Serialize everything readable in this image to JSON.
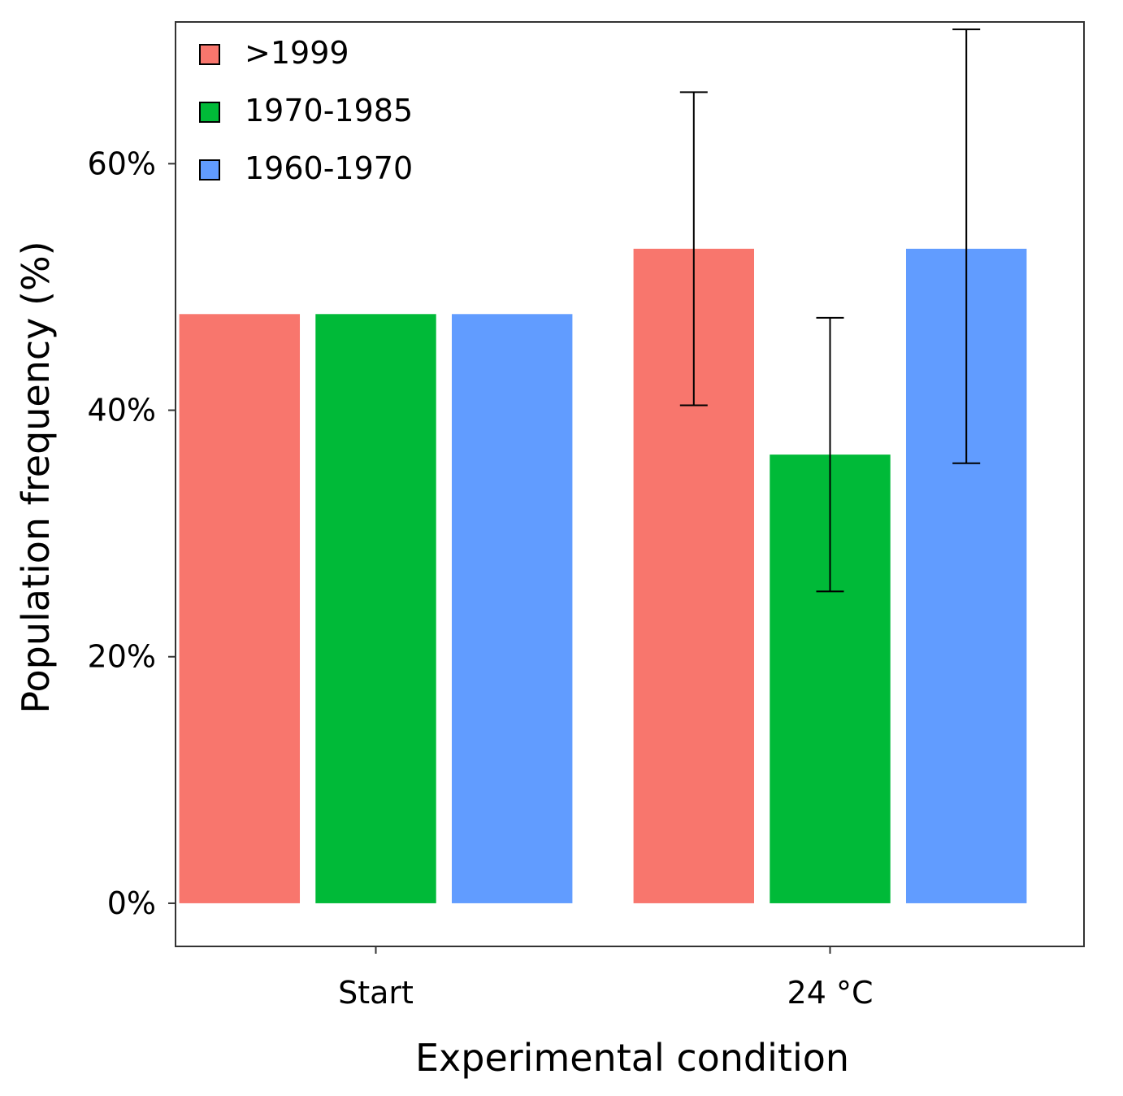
{
  "chart_data": {
    "type": "bar",
    "title": "",
    "xlabel": "Experimental condition",
    "ylabel": "Population frequency (%)",
    "categories": [
      "Start",
      "24 °C"
    ],
    "ylim": [
      -3.5,
      71.5
    ],
    "yticks": [
      0,
      20,
      40,
      60
    ],
    "ytick_labels": [
      "0%",
      "20%",
      "40%",
      "60%"
    ],
    "grid": false,
    "legend_position": "top-left",
    "series": [
      {
        "name": ">1999",
        "color": "#F8766D",
        "values": [
          47.8,
          53.1
        ],
        "error_low": [
          null,
          40.4
        ],
        "error_high": [
          null,
          65.8
        ]
      },
      {
        "name": "1970-1985",
        "color": "#00BA38",
        "values": [
          47.8,
          36.4
        ],
        "error_low": [
          null,
          25.3
        ],
        "error_high": [
          null,
          47.5
        ]
      },
      {
        "name": "1960-1970",
        "color": "#619CFF",
        "values": [
          47.8,
          53.1
        ],
        "error_low": [
          null,
          35.7
        ],
        "error_high": [
          null,
          70.9
        ]
      }
    ]
  }
}
